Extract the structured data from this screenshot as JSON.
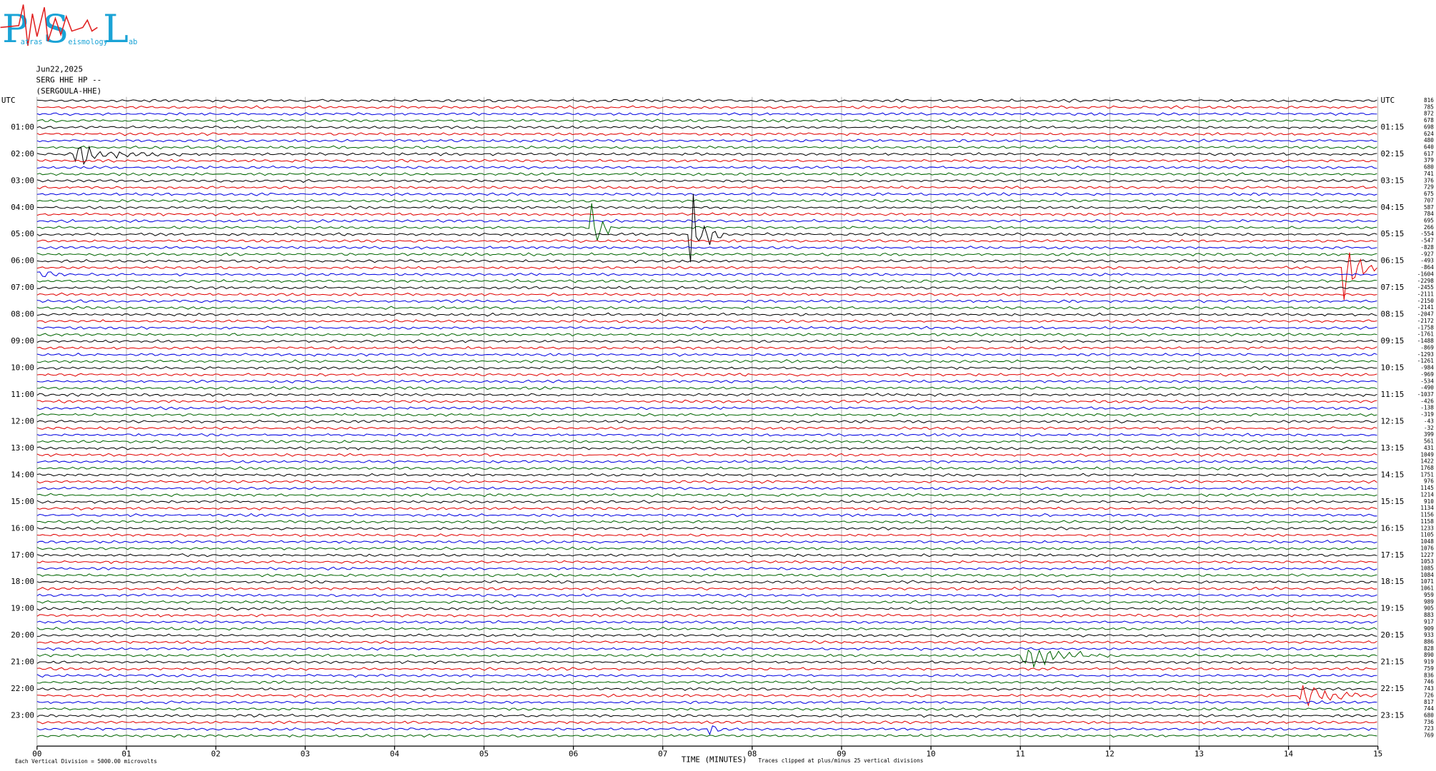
{
  "logo": {
    "big": [
      "P",
      "S",
      "L"
    ],
    "small": [
      "atras",
      "eismology",
      "ab"
    ]
  },
  "header": {
    "date": "Jun22,2025",
    "station": "SERG HHE HP --",
    "name": "(SERGOULA-HHE)"
  },
  "plot": {
    "left_labels": [
      "UTC",
      "01:00",
      "02:00",
      "03:00",
      "04:00",
      "05:00",
      "06:00",
      "07:00",
      "08:00",
      "09:00",
      "10:00",
      "11:00",
      "12:00",
      "13:00",
      "14:00",
      "15:00",
      "16:00",
      "17:00",
      "18:00",
      "19:00",
      "20:00",
      "21:00",
      "22:00",
      "23:00"
    ],
    "right_labels": [
      "UTC",
      "01:15",
      "02:15",
      "03:15",
      "04:15",
      "05:15",
      "06:15",
      "07:15",
      "08:15",
      "09:15",
      "10:15",
      "11:15",
      "12:15",
      "13:15",
      "14:15",
      "15:15",
      "16:15",
      "17:15",
      "18:15",
      "19:15",
      "20:15",
      "21:15",
      "22:15",
      "23:15"
    ],
    "offsets": [
      816,
      785,
      872,
      678,
      698,
      624,
      480,
      640,
      617,
      379,
      680,
      741,
      376,
      729,
      675,
      707,
      587,
      784,
      695,
      266,
      -554,
      -547,
      -828,
      -927,
      -493,
      -864,
      -1604,
      -2298,
      -2455,
      -2111,
      -2150,
      -2141,
      -2047,
      -2172,
      -1758,
      -1761,
      -1488,
      -869,
      -1293,
      -1261,
      -984,
      -969,
      -534,
      -490,
      -1037,
      -426,
      -138,
      -319,
      -43,
      -32,
      399,
      561,
      431,
      1049,
      1422,
      1768,
      1751,
      976,
      1145,
      1214,
      910,
      1134,
      1156,
      1158,
      1233,
      1105,
      1048,
      1076,
      1227,
      1053,
      1085,
      1084,
      1071,
      1061,
      959,
      989,
      905,
      883,
      917,
      909,
      933,
      886,
      828,
      890,
      919,
      759,
      836,
      746,
      743,
      726,
      817,
      744,
      680,
      736,
      723,
      769
    ],
    "x_ticks": [
      "00",
      "01",
      "02",
      "03",
      "04",
      "05",
      "06",
      "07",
      "08",
      "09",
      "10",
      "11",
      "12",
      "13",
      "14",
      "15"
    ],
    "x_label": "TIME (MINUTES)"
  },
  "footer": {
    "division": "Each Vertical Division = 5000.00 microvolts",
    "clip": "Traces clipped at plus/minus 25 vertical divisions"
  }
}
